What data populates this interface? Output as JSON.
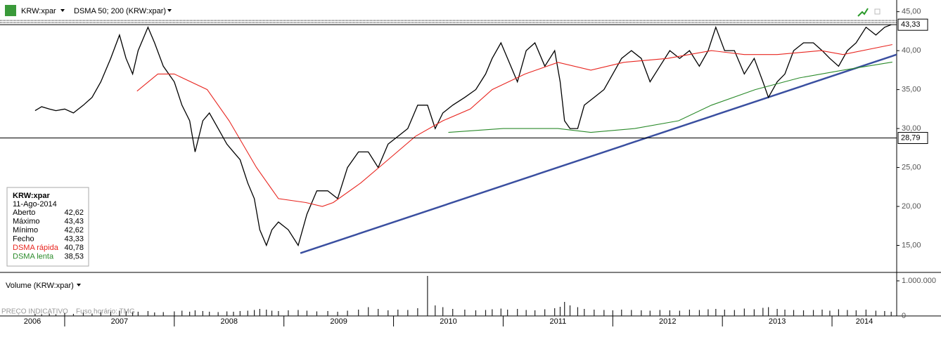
{
  "chart_data": {
    "type": "line",
    "symbol": "KRW:xpar",
    "indicator": "DSMA 50; 200 (KRW:xpar)",
    "volume_title": "Volume (KRW:xpar)",
    "footnote": "PREÇO INDICATIVO",
    "timezone": "Fuso horário: TMG",
    "xlim": [
      2006.41,
      2014.59
    ],
    "ylim": [
      11.8,
      45.6
    ],
    "xticks": [
      {
        "value": 2006,
        "label": "2006"
      },
      {
        "value": 2007,
        "label": "2007"
      },
      {
        "value": 2008,
        "label": "2008"
      },
      {
        "value": 2009,
        "label": "2009"
      },
      {
        "value": 2010,
        "label": "2010"
      },
      {
        "value": 2011,
        "label": "2011"
      },
      {
        "value": 2012,
        "label": "2012"
      },
      {
        "value": 2013,
        "label": "2013"
      },
      {
        "value": 2014,
        "label": "2014"
      }
    ],
    "yticks": [
      {
        "value": 15,
        "label": "15,00"
      },
      {
        "value": 20,
        "label": "20,00"
      },
      {
        "value": 25,
        "label": "25,00"
      },
      {
        "value": 30,
        "label": "30,00"
      },
      {
        "value": 35,
        "label": "35,00"
      },
      {
        "value": 40,
        "label": "40,00"
      },
      {
        "value": 45,
        "label": "45,00"
      }
    ],
    "x": [
      2006.73,
      2006.79,
      2006.86,
      2006.92,
      2007.0,
      2007.08,
      2007.17,
      2007.25,
      2007.33,
      2007.42,
      2007.5,
      2007.56,
      2007.62,
      2007.67,
      2007.76,
      2007.82,
      2007.9,
      2008.0,
      2008.07,
      2008.14,
      2008.19,
      2008.26,
      2008.32,
      2008.4,
      2008.48,
      2008.54,
      2008.6,
      2008.67,
      2008.73,
      2008.78,
      2008.84,
      2008.89,
      2008.95,
      2009.04,
      2009.13,
      2009.21,
      2009.3,
      2009.4,
      2009.49,
      2009.58,
      2009.68,
      2009.77,
      2009.86,
      2009.95,
      2010.04,
      2010.13,
      2010.22,
      2010.31,
      2010.38,
      2010.45,
      2010.54,
      2010.65,
      2010.75,
      2010.84,
      2010.9,
      2010.98,
      2011.04,
      2011.13,
      2011.21,
      2011.29,
      2011.38,
      2011.47,
      2011.52,
      2011.56,
      2011.61,
      2011.68,
      2011.74,
      2011.83,
      2011.92,
      2012.0,
      2012.08,
      2012.17,
      2012.26,
      2012.34,
      2012.43,
      2012.52,
      2012.61,
      2012.7,
      2012.79,
      2012.87,
      2012.94,
      2013.02,
      2013.11,
      2013.2,
      2013.29,
      2013.37,
      2013.42,
      2013.5,
      2013.57,
      2013.65,
      2013.74,
      2013.83,
      2013.91,
      2013.98,
      2014.06,
      2014.14,
      2014.22,
      2014.31,
      2014.4,
      2014.48,
      2014.54
    ],
    "series": [
      {
        "name": "KRW:xpar",
        "color": "#000000",
        "values": [
          32.3,
          32.8,
          32.5,
          32.3,
          32.5,
          32.0,
          33,
          34,
          36,
          39,
          42,
          39,
          37,
          40,
          43,
          41,
          38,
          36,
          33,
          31,
          27,
          31,
          32,
          30,
          28,
          27,
          26,
          23,
          21,
          17,
          15,
          17,
          18,
          17,
          15,
          19,
          22,
          22,
          21,
          25,
          27,
          27,
          25,
          28,
          29,
          30,
          33,
          33,
          30,
          32,
          33,
          34,
          35,
          37,
          39,
          41,
          39,
          36,
          40,
          41,
          38,
          40,
          36,
          31,
          30,
          30,
          33,
          34,
          35,
          37,
          39,
          40,
          39,
          36,
          38,
          40,
          39,
          40,
          38,
          40,
          43,
          40,
          40,
          37,
          39,
          36,
          34,
          36,
          37,
          40,
          41,
          41,
          40,
          39,
          38,
          40,
          41,
          43,
          42,
          43,
          43.33
        ]
      },
      {
        "name": "DSMA rápida",
        "color": "#e8251f",
        "x": [
          2007.66,
          2007.85,
          2008.0,
          2008.3,
          2008.5,
          2008.75,
          2008.95,
          2009.2,
          2009.35,
          2009.45,
          2009.7,
          2009.95,
          2010.2,
          2010.45,
          2010.7,
          2010.9,
          2011.2,
          2011.5,
          2011.8,
          2012.1,
          2012.5,
          2012.9,
          2013.2,
          2013.5,
          2013.9,
          2014.1,
          2014.55
        ],
        "values": [
          34.8,
          37,
          37,
          35,
          31,
          25,
          21,
          20.5,
          20,
          20.5,
          23,
          26,
          29,
          31,
          32.5,
          35,
          37,
          38.5,
          37.5,
          38.5,
          39,
          40,
          39.5,
          39.5,
          40,
          39.5,
          40.78
        ]
      },
      {
        "name": "DSMA lenta",
        "color": "#2a8a2a",
        "x": [
          2010.5,
          2011.0,
          2011.5,
          2011.8,
          2012.2,
          2012.6,
          2012.9,
          2013.3,
          2013.7,
          2014.1,
          2014.55
        ],
        "values": [
          29.5,
          30,
          30,
          29.5,
          30,
          31,
          33,
          35,
          36.5,
          37.5,
          38.53
        ]
      }
    ],
    "trendline": {
      "color": "#3a4fa0",
      "x": [
        2009.15,
        2014.59
      ],
      "values": [
        14,
        39.5
      ]
    },
    "price_lines": [
      {
        "value": 43.33,
        "label": "43,33"
      },
      {
        "value": 28.79,
        "label": "28,79"
      }
    ],
    "volume": {
      "ylim": [
        0,
        1150000
      ],
      "yticks": [
        {
          "value": 0,
          "label": "0"
        },
        {
          "value": 1000000,
          "label": "1.000.000"
        }
      ],
      "values": [
        60000,
        50000,
        70000,
        50000,
        80000,
        60000,
        90000,
        70000,
        100000,
        120000,
        150000,
        130000,
        110000,
        120000,
        140000,
        100000,
        110000,
        130000,
        150000,
        120000,
        160000,
        140000,
        120000,
        110000,
        130000,
        120000,
        140000,
        150000,
        170000,
        200000,
        180000,
        150000,
        140000,
        160000,
        170000,
        150000,
        130000,
        140000,
        120000,
        150000,
        180000,
        250000,
        200000,
        160000,
        180000,
        170000,
        220000,
        1140000,
        300000,
        250000,
        200000,
        180000,
        160000,
        170000,
        190000,
        210000,
        180000,
        200000,
        170000,
        160000,
        190000,
        220000,
        260000,
        400000,
        300000,
        250000,
        200000,
        180000,
        170000,
        160000,
        180000,
        170000,
        160000,
        150000,
        170000,
        160000,
        150000,
        180000,
        170000,
        190000,
        200000,
        180000,
        170000,
        210000,
        190000,
        230000,
        250000,
        200000,
        180000,
        170000,
        160000,
        170000,
        180000,
        150000,
        190000,
        170000,
        160000,
        180000,
        150000,
        140000,
        120000
      ]
    },
    "info_box": {
      "title": "KRW:xpar",
      "date": "11-Ago-2014",
      "rows": [
        [
          "Aberto",
          "42,62"
        ],
        [
          "Máximo",
          "43,43"
        ],
        [
          "Mínimo",
          "42,62"
        ],
        [
          "Fecho",
          "43,33"
        ],
        [
          "DSMA rápida",
          "40,78"
        ],
        [
          "DSMA lenta",
          "38,53"
        ]
      ]
    }
  }
}
